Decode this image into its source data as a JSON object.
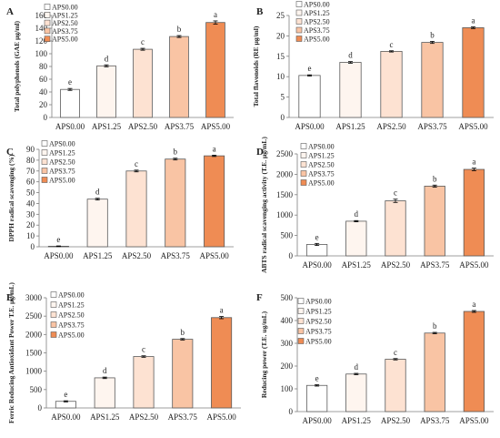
{
  "colors": {
    "axis": "#7f7f7f",
    "bar_stroke": "#5a5a5a",
    "error": "#000000",
    "series": [
      "#ffffff",
      "#fef5ef",
      "#fde2d2",
      "#f9c4a4",
      "#ef8c54"
    ]
  },
  "chart_data": [
    {
      "panel": "A",
      "type": "bar",
      "categories": [
        "APS0.00",
        "APS1.25",
        "APS2.50",
        "APS3.75",
        "APS5.00"
      ],
      "values": [
        44,
        81,
        107,
        127,
        149
      ],
      "errors": [
        1.5,
        1.5,
        1.5,
        1.5,
        2.5
      ],
      "letters": [
        "e",
        "d",
        "c",
        "b",
        "a"
      ],
      "ylabel": "Total polyphenols (GAE μg/ml)",
      "ylim": [
        0,
        160
      ],
      "yticks": [
        "0",
        "20",
        "40",
        "60",
        "80",
        "100",
        "120",
        "140",
        "160"
      ],
      "legend": [
        "APS0.00",
        "APS1.25",
        "APS2.50",
        "APS3.75",
        "APS5.00"
      ]
    },
    {
      "panel": "B",
      "type": "bar",
      "categories": [
        "APS0.00",
        "APS1.25",
        "APS2.50",
        "APS3.75",
        "APS5.00"
      ],
      "values": [
        10.3,
        13.5,
        16.2,
        18.4,
        22.0
      ],
      "errors": [
        0.15,
        0.2,
        0.15,
        0.25,
        0.2
      ],
      "letters": [
        "e",
        "d",
        "c",
        "b",
        "a"
      ],
      "ylabel": "Total flavonoids (RE μg/ml)",
      "ylim": [
        0,
        25
      ],
      "yticks": [
        "0",
        "5",
        "10",
        "15",
        "20",
        "25"
      ],
      "legend": [
        "APS0.00",
        "APS1.25",
        "APS2.50",
        "APS3.75",
        "APS5.00"
      ]
    },
    {
      "panel": "C",
      "type": "bar",
      "categories": [
        "APS0.00",
        "APS1.25",
        "APS2.50",
        "APS3.75",
        "APS5.00"
      ],
      "values": [
        0.5,
        44,
        70,
        81,
        84
      ],
      "errors": [
        0.3,
        0.8,
        0.8,
        0.8,
        0.6
      ],
      "letters": [
        "e",
        "d",
        "c",
        "b",
        "a"
      ],
      "ylabel": "DPPH radical scavenging (%)",
      "ylim": [
        0,
        90
      ],
      "yticks": [
        "0",
        "10",
        "20",
        "30",
        "40",
        "50",
        "60",
        "70",
        "80",
        "90"
      ],
      "legend": [
        "APS0.00",
        "APS1.25",
        "APS2.50",
        "APS3.75",
        "APS5.00"
      ]
    },
    {
      "panel": "D",
      "type": "bar",
      "categories": [
        "APS0.00",
        "APS1.25",
        "APS2.50",
        "APS3.75",
        "APS5.00"
      ],
      "values": [
        280,
        850,
        1350,
        1710,
        2120
      ],
      "errors": [
        25,
        15,
        40,
        25,
        30
      ],
      "letters": [
        "e",
        "d",
        "c",
        "b",
        "a"
      ],
      "ylabel": "ABTS radical scavenging activity (T.E. μg/mL)",
      "ylim": [
        0,
        2500
      ],
      "yticks": [
        "0",
        "500",
        "1000",
        "1500",
        "2000",
        "2500"
      ],
      "legend": [
        "APS0.00",
        "APS1.25",
        "APS2.50",
        "APS3.75",
        "APS5.00"
      ]
    },
    {
      "panel": "E",
      "type": "bar",
      "categories": [
        "APS0.00",
        "APS1.25",
        "APS2.50",
        "APS3.75",
        "APS5.00"
      ],
      "values": [
        180,
        820,
        1400,
        1870,
        2460
      ],
      "errors": [
        15,
        20,
        20,
        20,
        30
      ],
      "letters": [
        "e",
        "d",
        "c",
        "b",
        "a"
      ],
      "ylabel": "Ferric Reducing Antioxidant Power T.E. μg/mL)",
      "ylim": [
        0,
        3000
      ],
      "yticks": [
        "0",
        "500",
        "1000",
        "1500",
        "2000",
        "2500",
        "3000"
      ],
      "legend": [
        "APS0.00",
        "APS1.25",
        "APS2.50",
        "APS3.75",
        "APS5.00"
      ]
    },
    {
      "panel": "F",
      "type": "bar",
      "categories": [
        "APS0.00",
        "APS1.25",
        "APS2.50",
        "APS3.75",
        "APS5.00"
      ],
      "values": [
        115,
        165,
        230,
        345,
        440
      ],
      "errors": [
        3,
        3,
        3,
        3,
        4
      ],
      "letters": [
        "e",
        "d",
        "c",
        "b",
        "a"
      ],
      "ylabel": "Reducing power (T.E. ug/mL)",
      "ylim": [
        0,
        500
      ],
      "yticks": [
        "0",
        "100",
        "200",
        "300",
        "400",
        "500"
      ],
      "legend": [
        "APS0.00",
        "APS1.25",
        "APS2.50",
        "APS3.75",
        "APS5.00"
      ]
    }
  ]
}
